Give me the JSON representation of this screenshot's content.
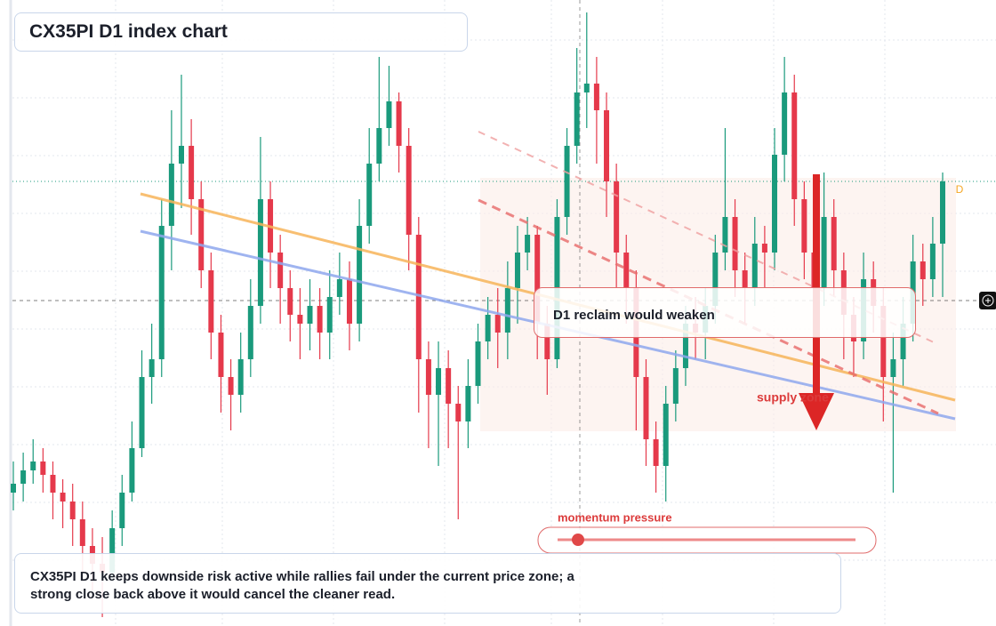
{
  "chart_data": {
    "type": "candlestick",
    "title": "CX35PI D1 index chart",
    "badge": "D",
    "annotations": {
      "reclaim": "D1 reclaim would weaken",
      "zone": "supply zone",
      "momentum": "momentum pressure"
    },
    "note": "CX35PI D1 keeps downside risk active while rallies fail under the current price zone; a strong close back above it would cancel the cleaner read.",
    "up_color": "#1a9a7c",
    "down_color": "#e5394b",
    "ylim": [
      0,
      704
    ],
    "open": [
      150,
      160,
      175,
      185,
      170,
      150,
      140,
      120,
      90,
      70,
      60,
      110,
      150,
      200,
      280,
      300,
      450,
      520,
      540,
      480,
      400,
      330,
      280,
      260,
      300,
      360,
      480,
      420,
      380,
      350,
      340,
      360,
      330,
      370,
      390,
      340,
      450,
      520,
      560,
      590,
      540,
      440,
      300,
      260,
      290,
      250,
      230,
      270,
      320,
      350,
      330,
      380,
      420,
      440,
      340,
      300,
      460,
      540,
      600,
      610,
      580,
      500,
      420,
      380,
      280,
      210,
      180,
      250,
      290,
      340,
      330,
      360,
      420,
      460,
      400,
      380,
      430,
      420,
      530,
      600,
      480,
      420,
      380,
      460,
      400,
      350,
      320,
      390,
      360,
      280,
      300,
      340,
      410,
      390,
      430
    ],
    "high": [
      185,
      195,
      210,
      200,
      185,
      165,
      160,
      140,
      110,
      100,
      130,
      170,
      230,
      310,
      340,
      480,
      580,
      620,
      570,
      500,
      420,
      350,
      300,
      330,
      390,
      550,
      500,
      440,
      400,
      380,
      390,
      380,
      400,
      420,
      410,
      480,
      560,
      640,
      630,
      600,
      560,
      460,
      320,
      320,
      310,
      270,
      300,
      340,
      370,
      380,
      410,
      450,
      460,
      450,
      360,
      480,
      560,
      650,
      690,
      640,
      600,
      520,
      440,
      400,
      300,
      230,
      270,
      310,
      360,
      370,
      380,
      440,
      560,
      480,
      420,
      460,
      450,
      560,
      640,
      620,
      500,
      440,
      510,
      480,
      420,
      370,
      420,
      410,
      380,
      330,
      370,
      440,
      430,
      460,
      510
    ],
    "low": [
      130,
      140,
      160,
      150,
      120,
      110,
      90,
      60,
      40,
      10,
      50,
      90,
      140,
      190,
      250,
      280,
      400,
      470,
      440,
      380,
      300,
      240,
      220,
      240,
      280,
      340,
      380,
      340,
      320,
      300,
      310,
      300,
      300,
      350,
      310,
      320,
      430,
      500,
      540,
      510,
      400,
      240,
      200,
      180,
      200,
      120,
      200,
      250,
      300,
      290,
      300,
      340,
      400,
      300,
      260,
      290,
      440,
      520,
      560,
      520,
      460,
      380,
      340,
      220,
      180,
      150,
      140,
      230,
      270,
      300,
      300,
      340,
      400,
      370,
      340,
      360,
      380,
      400,
      500,
      450,
      390,
      350,
      360,
      370,
      300,
      280,
      300,
      330,
      230,
      150,
      270,
      320,
      360,
      370,
      370
    ],
    "close": [
      160,
      175,
      185,
      170,
      150,
      140,
      120,
      90,
      70,
      60,
      110,
      150,
      200,
      280,
      300,
      450,
      520,
      540,
      480,
      400,
      330,
      280,
      260,
      300,
      360,
      480,
      420,
      380,
      350,
      340,
      360,
      330,
      370,
      390,
      340,
      450,
      520,
      560,
      590,
      540,
      440,
      300,
      260,
      290,
      250,
      230,
      270,
      320,
      350,
      330,
      380,
      420,
      440,
      340,
      300,
      460,
      540,
      600,
      610,
      580,
      500,
      420,
      380,
      280,
      210,
      180,
      250,
      290,
      340,
      330,
      360,
      420,
      460,
      400,
      380,
      430,
      420,
      530,
      600,
      480,
      420,
      380,
      460,
      400,
      350,
      320,
      390,
      360,
      280,
      300,
      340,
      410,
      390,
      430,
      500
    ]
  }
}
